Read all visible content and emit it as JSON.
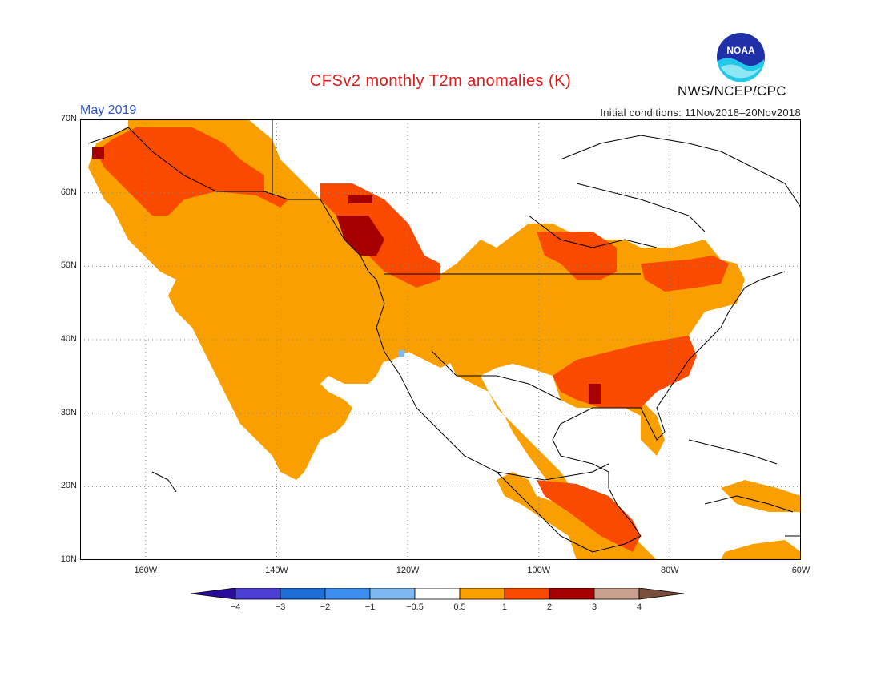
{
  "title": "CFSv2 monthly T2m anomalies (K)",
  "period": "May 2019",
  "initial_conditions": "Initial conditions: 11Nov2018–20Nov2018",
  "agency": "NWS/NCEP/CPC",
  "logo_text": "NOAA",
  "map": {
    "lon_range": [
      -170,
      -60
    ],
    "lat_range": [
      10,
      70
    ],
    "lat_labels": [
      "10N",
      "20N",
      "30N",
      "40N",
      "50N",
      "60N",
      "70N"
    ],
    "lon_labels": [
      "160W",
      "140W",
      "120W",
      "100W",
      "80W",
      "60W"
    ],
    "colors": {
      "water": "#ffffff",
      "coast": "#000000",
      "grid": "#888888",
      "a05": "#f9a000",
      "a1": "#f94a00",
      "a2": "#a40000",
      "neg05": "#7fb9f2"
    }
  },
  "colorbar": {
    "labels": [
      "−4",
      "−3",
      "−2",
      "−1",
      "−0.5",
      "0.5",
      "1",
      "2",
      "3",
      "4"
    ],
    "colors": [
      "#2a0c9a",
      "#4b3fd4",
      "#1f6ed8",
      "#3d8ef0",
      "#7fb9f2",
      "#ffffff",
      "#f9a000",
      "#f94a00",
      "#a40000",
      "#c8a08e",
      "#7a4e3c"
    ]
  }
}
